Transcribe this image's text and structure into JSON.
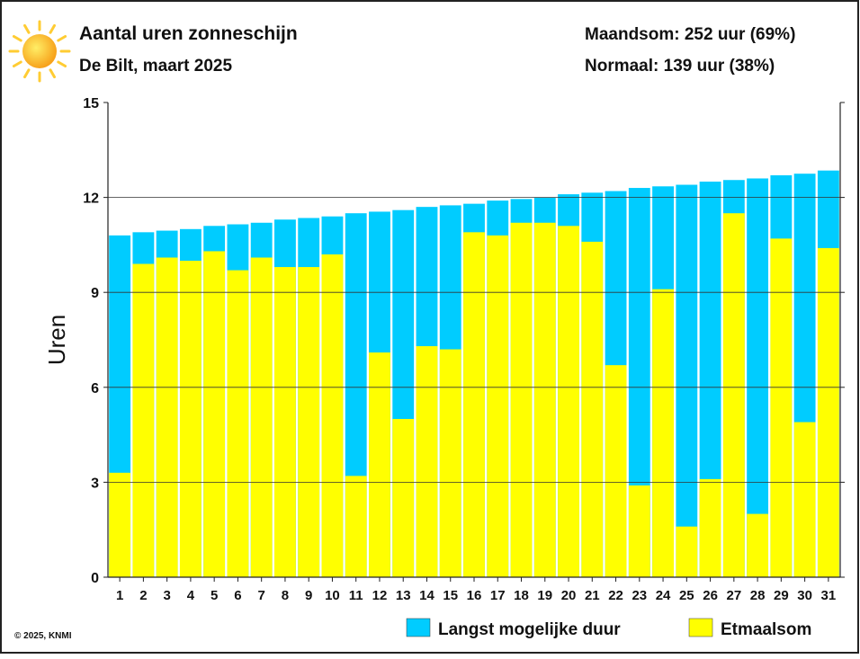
{
  "header": {
    "title": "Aantal uren zonneschijn",
    "subtitle": "De Bilt, maart 2025",
    "monthly_sum": "Maandsom: 252 uur (69%)",
    "normal": "Normaal: 139 uur (38%)",
    "icon": "sun-icon"
  },
  "footer": {
    "copyright": "© 2025, KNMI"
  },
  "chart_data": {
    "type": "bar",
    "title": "Aantal uren zonneschijn",
    "subtitle": "De Bilt, maart 2025",
    "xlabel": "",
    "ylabel": "Uren",
    "ylim": [
      0,
      15
    ],
    "yticks": [
      0,
      3,
      6,
      9,
      12,
      15
    ],
    "grid": true,
    "legend_position": "bottom-right",
    "categories": [
      "1",
      "2",
      "3",
      "4",
      "5",
      "6",
      "7",
      "8",
      "9",
      "10",
      "11",
      "12",
      "13",
      "14",
      "15",
      "16",
      "17",
      "18",
      "19",
      "20",
      "21",
      "22",
      "23",
      "24",
      "25",
      "26",
      "27",
      "28",
      "29",
      "30",
      "31"
    ],
    "series": [
      {
        "name": "Langst mogelijke duur",
        "color": "#00ccff",
        "values": [
          10.8,
          10.9,
          10.95,
          11.0,
          11.1,
          11.15,
          11.2,
          11.3,
          11.35,
          11.4,
          11.5,
          11.55,
          11.6,
          11.7,
          11.75,
          11.8,
          11.9,
          11.95,
          12.0,
          12.1,
          12.15,
          12.2,
          12.3,
          12.35,
          12.4,
          12.5,
          12.55,
          12.6,
          12.7,
          12.75,
          12.85
        ]
      },
      {
        "name": "Etmaalsom",
        "color": "#ffff00",
        "values": [
          3.3,
          9.9,
          10.1,
          10.0,
          10.3,
          9.7,
          10.1,
          9.8,
          9.8,
          10.2,
          3.2,
          7.1,
          5.0,
          7.3,
          7.2,
          10.9,
          10.8,
          11.2,
          11.2,
          11.1,
          10.6,
          6.7,
          2.9,
          9.1,
          1.6,
          3.1,
          11.5,
          2.0,
          10.7,
          4.9,
          10.4
        ]
      }
    ]
  }
}
